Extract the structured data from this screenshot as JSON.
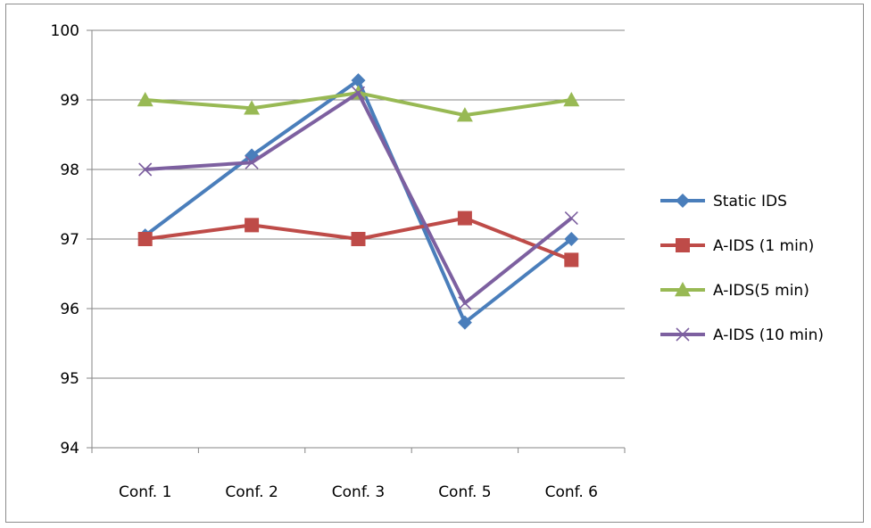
{
  "chart_data": {
    "type": "line",
    "title": "",
    "xlabel": "",
    "ylabel": "",
    "categories": [
      "Conf. 1",
      "Conf. 2",
      "Conf. 3",
      "Conf. 5",
      "Conf. 6"
    ],
    "ylim": [
      94,
      100
    ],
    "yticks": [
      94,
      95,
      96,
      97,
      98,
      99,
      100
    ],
    "grid": true,
    "legend_position": "right",
    "series": [
      {
        "name": "Static IDS",
        "values": [
          97.05,
          98.2,
          99.28,
          95.8,
          97.0
        ],
        "color": "#4a7ebb",
        "marker": "diamond"
      },
      {
        "name": "A-IDS (1 min)",
        "values": [
          97.0,
          97.2,
          97.0,
          97.3,
          96.7
        ],
        "color": "#be4b48",
        "marker": "square"
      },
      {
        "name": "A-IDS(5 min)",
        "values": [
          99.0,
          98.88,
          99.1,
          98.78,
          99.0
        ],
        "color": "#98b954",
        "marker": "triangle"
      },
      {
        "name": "A-IDS (10 min)",
        "values": [
          98.0,
          98.1,
          99.1,
          96.08,
          97.3
        ],
        "color": "#7d60a0",
        "marker": "x"
      }
    ]
  }
}
